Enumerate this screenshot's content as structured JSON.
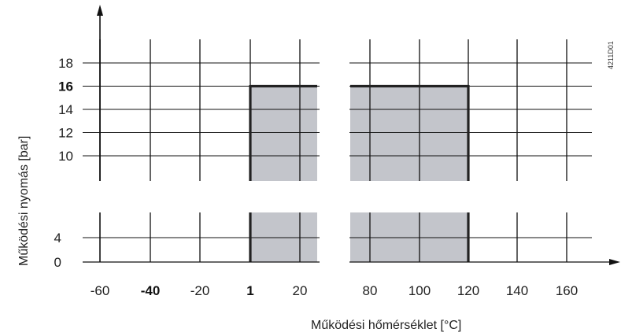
{
  "chart_data": {
    "type": "area",
    "xlabel": "Működési hőmérséklet [°C]",
    "ylabel": "Működési nyomás [bar]",
    "code": "4211D01",
    "x_ticks": [
      {
        "label": "-60",
        "bold": false
      },
      {
        "label": "-40",
        "bold": true
      },
      {
        "label": "-20",
        "bold": false
      },
      {
        "label": "1",
        "bold": true
      },
      {
        "label": "20",
        "bold": false
      },
      {
        "label": "80",
        "bold": false
      },
      {
        "label": "100",
        "bold": false
      },
      {
        "label": "120",
        "bold": false
      },
      {
        "label": "140",
        "bold": false
      },
      {
        "label": "160",
        "bold": false
      }
    ],
    "y_ticks_upper": [
      {
        "label": "18",
        "value": 18,
        "bold": false
      },
      {
        "label": "16",
        "value": 16,
        "bold": true
      },
      {
        "label": "14",
        "value": 14,
        "bold": false
      },
      {
        "label": "12",
        "value": 12,
        "bold": false
      },
      {
        "label": "10",
        "value": 10,
        "bold": false
      }
    ],
    "y_ticks_lower": [
      {
        "label": "4",
        "value": 4,
        "bold": false
      },
      {
        "label": "0",
        "value": 0,
        "bold": false
      }
    ],
    "operating_range": {
      "temperature_min": 1,
      "temperature_max": 120,
      "pressure_max": 16
    },
    "colors": {
      "fill": "#c3c5cb",
      "line": "#111111",
      "boundary": "#222222"
    },
    "grid": true,
    "axis_breaks": {
      "x": true,
      "y": true
    }
  }
}
